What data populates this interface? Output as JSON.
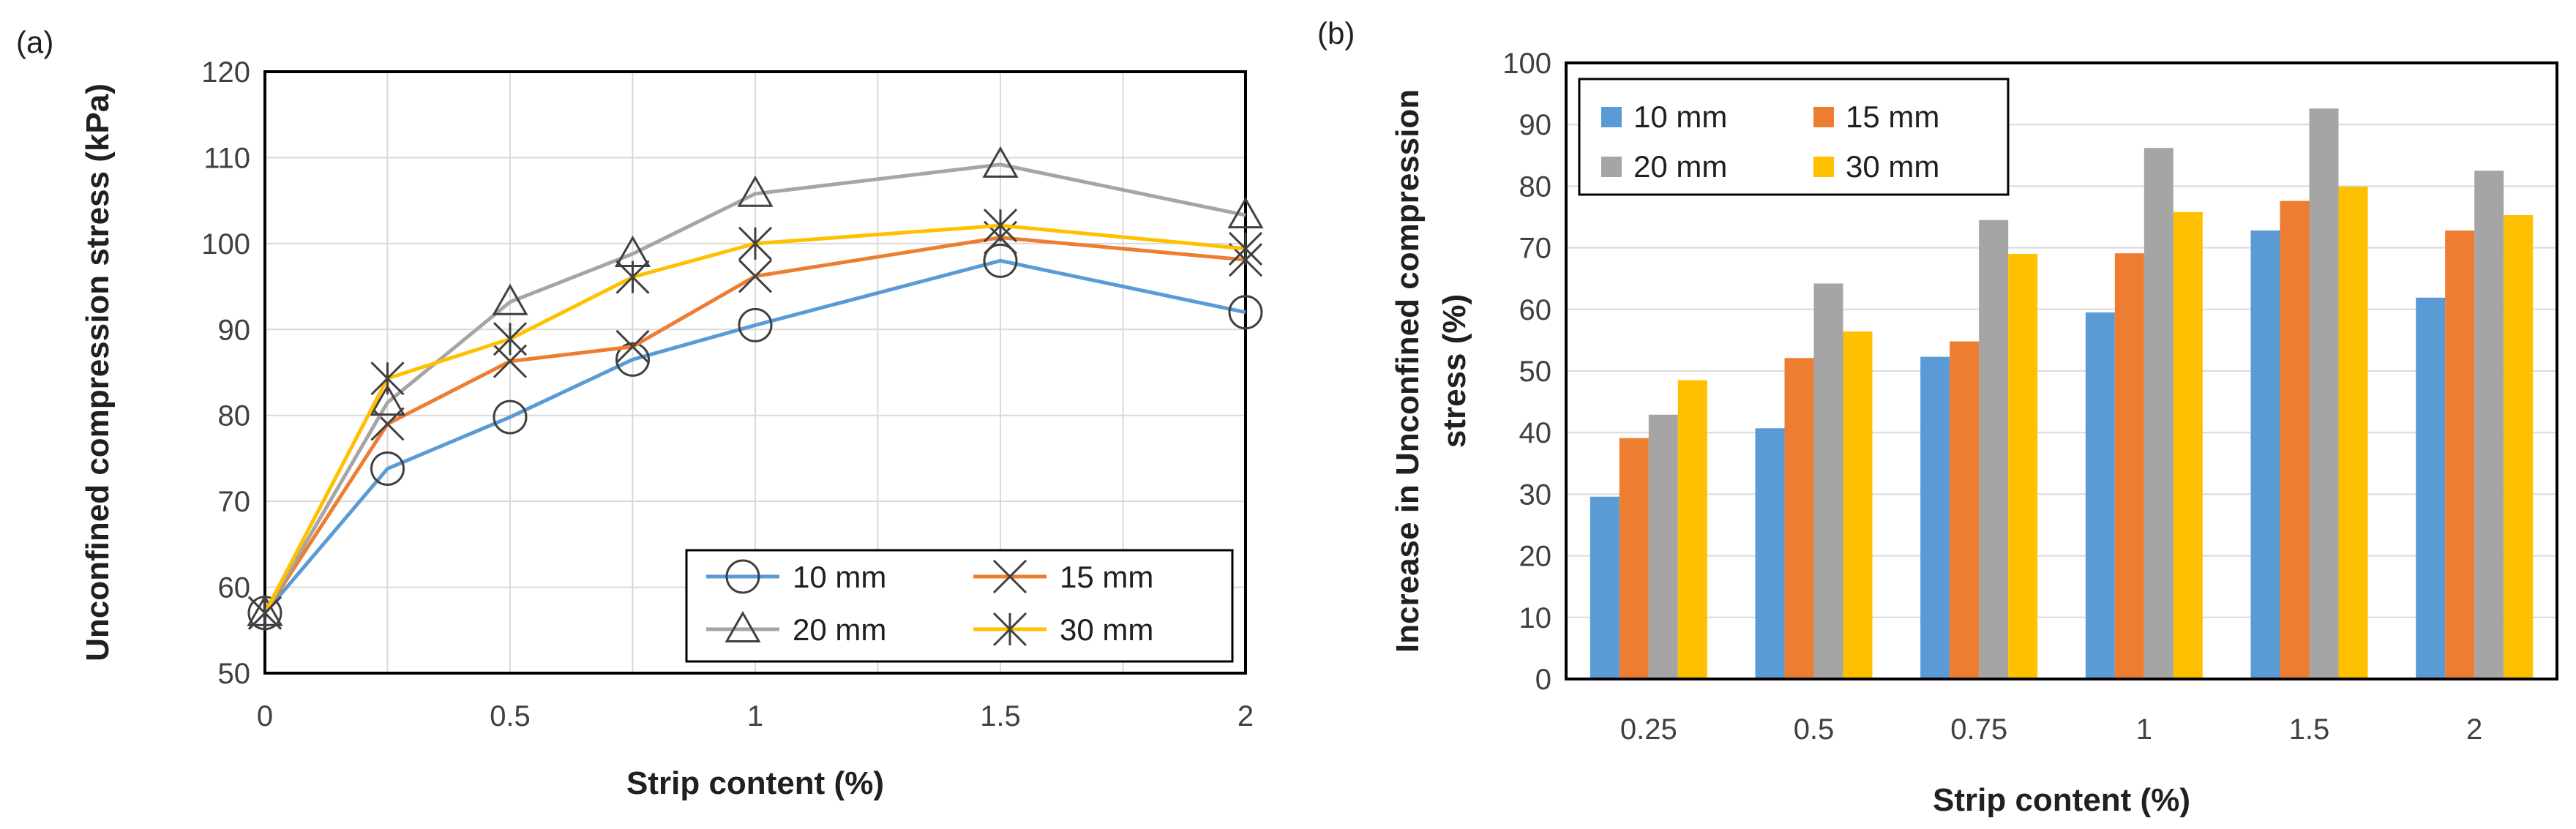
{
  "chart_data": [
    {
      "panel_label": "(a)",
      "type": "line",
      "xlabel": "Strip content (%)",
      "ylabel": "Unconfined compression stress (kPa)",
      "x": [
        0,
        0.25,
        0.5,
        0.75,
        1,
        1.5,
        2
      ],
      "xlim": [
        0,
        2
      ],
      "ylim": [
        50,
        120
      ],
      "xticks": [
        "0",
        "0.5",
        "1",
        "1.5",
        "2"
      ],
      "yticks": [
        "50",
        "60",
        "70",
        "80",
        "90",
        "100",
        "110",
        "120"
      ],
      "grid": true,
      "legend_position": "bottom-right",
      "series": [
        {
          "name": "10 mm",
          "marker": "circle",
          "color": "#5B9BD5",
          "values": [
            57,
            73.8,
            79.8,
            86.5,
            90.5,
            98,
            92
          ]
        },
        {
          "name": "15 mm",
          "marker": "x",
          "color": "#ED7D31",
          "values": [
            57,
            79,
            86.3,
            88,
            96.2,
            100.7,
            98.1
          ]
        },
        {
          "name": "20 mm",
          "marker": "triangle",
          "color": "#A5A5A5",
          "values": [
            57,
            81.5,
            93.2,
            98.8,
            105.8,
            109.2,
            103.3
          ]
        },
        {
          "name": "30 mm",
          "marker": "star",
          "color": "#FFC000",
          "values": [
            57,
            84.3,
            88.9,
            96.1,
            100,
            102.1,
            99.4
          ]
        }
      ]
    },
    {
      "panel_label": "(b)",
      "type": "bar",
      "xlabel": "Strip content (%)",
      "ylabel_line1": "Increase in Unconfined compression",
      "ylabel_line2": "stress (%)",
      "categories": [
        "0.25",
        "0.5",
        "0.75",
        "1",
        "1.5",
        "2"
      ],
      "ylim": [
        0,
        100
      ],
      "yticks": [
        "0",
        "10",
        "20",
        "30",
        "40",
        "50",
        "60",
        "70",
        "80",
        "90",
        "100"
      ],
      "grid": true,
      "legend_position": "top-left",
      "series": [
        {
          "name": "10 mm",
          "color": "#5B9BD5",
          "values": [
            29.6,
            40.7,
            52.3,
            59.5,
            72.8,
            61.9
          ]
        },
        {
          "name": "15 mm",
          "color": "#ED7D31",
          "values": [
            39.1,
            52.1,
            54.8,
            69.1,
            77.6,
            72.8
          ]
        },
        {
          "name": "20 mm",
          "color": "#A5A5A5",
          "values": [
            42.9,
            64.2,
            74.5,
            86.2,
            92.6,
            82.5
          ]
        },
        {
          "name": "30 mm",
          "color": "#FFC000",
          "values": [
            48.5,
            56.4,
            69,
            75.8,
            79.9,
            75.3
          ]
        }
      ]
    }
  ]
}
